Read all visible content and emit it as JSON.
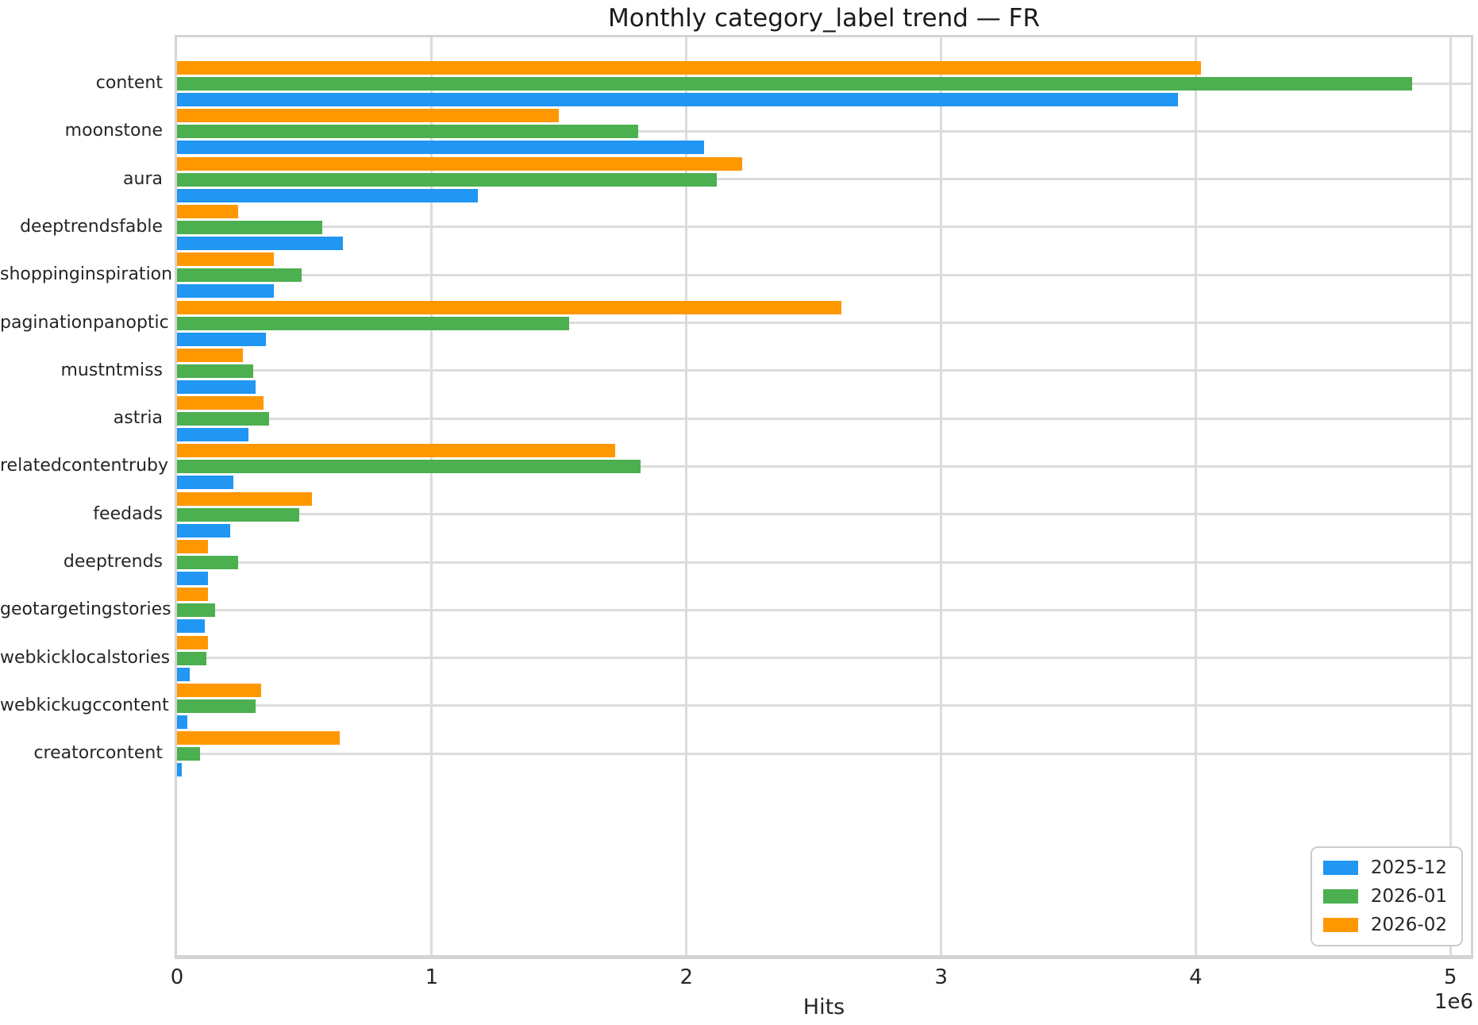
{
  "title": "Monthly category_label trend — FR",
  "axes": {
    "xlabel": "Hits",
    "offset_text": "1e6",
    "xtick_labels": [
      "0",
      "1",
      "2",
      "3",
      "4",
      "5"
    ]
  },
  "legend": {
    "entries": [
      {
        "label": "2025-12",
        "color": "#2196F3"
      },
      {
        "label": "2026-01",
        "color": "#4CAF50"
      },
      {
        "label": "2026-02",
        "color": "#FF9800"
      }
    ]
  },
  "chart_data": {
    "type": "bar",
    "orientation": "horizontal",
    "title": "Monthly category_label trend — FR",
    "xlabel": "Hits",
    "ylabel": "",
    "xlim": [
      0,
      5080000
    ],
    "xticks": [
      0,
      1000000,
      2000000,
      3000000,
      4000000,
      5000000
    ],
    "x_multiplier_label": "1e6",
    "grid": true,
    "legend_position": "lower right",
    "categories": [
      "content",
      "moonstone",
      "aura",
      "deeptrendsfable",
      "shoppinginspiration",
      "paginationpanoptic",
      "mustntmiss",
      "astria",
      "relatedcontentruby",
      "feedads",
      "deeptrends",
      "geotargetingstories",
      "webkicklocalstories",
      "webkickugccontent",
      "creatorcontent"
    ],
    "series": [
      {
        "name": "2025-12",
        "color": "#2196F3",
        "values": [
          3930000,
          2070000,
          1180000,
          650000,
          380000,
          350000,
          310000,
          280000,
          220000,
          210000,
          120000,
          110000,
          50000,
          40000,
          20000
        ]
      },
      {
        "name": "2026-01",
        "color": "#4CAF50",
        "values": [
          4850000,
          1810000,
          2120000,
          570000,
          490000,
          1540000,
          300000,
          360000,
          1820000,
          480000,
          240000,
          150000,
          115000,
          310000,
          90000
        ]
      },
      {
        "name": "2026-02",
        "color": "#FF9800",
        "values": [
          4020000,
          1500000,
          2220000,
          240000,
          380000,
          2610000,
          260000,
          340000,
          1720000,
          530000,
          120000,
          120000,
          120000,
          330000,
          640000
        ]
      }
    ]
  }
}
